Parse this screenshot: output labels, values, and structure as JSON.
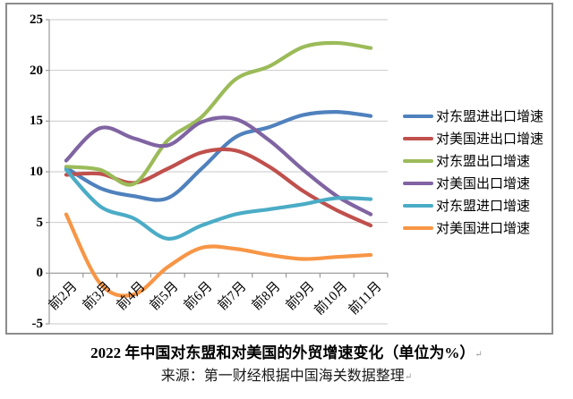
{
  "chart_data": {
    "type": "line",
    "title": "2022 年中国对东盟和对美国的外贸增速变化（单位为%）",
    "source": "来源：第一财经根据中国海关数据整理",
    "unit": "%",
    "categories": [
      "前2月",
      "前3月",
      "前4月",
      "前5月",
      "前6月",
      "前7月",
      "前8月",
      "前9月",
      "前10月",
      "前11月"
    ],
    "series": [
      {
        "name": "对东盟进出口增速",
        "color": "#4F81BD",
        "values": [
          10.4,
          8.4,
          7.6,
          7.4,
          10.3,
          13.4,
          14.4,
          15.6,
          15.9,
          15.5
        ]
      },
      {
        "name": "对美国进出口增速",
        "color": "#C0504D",
        "values": [
          9.7,
          9.8,
          8.9,
          10.3,
          11.9,
          12.1,
          10.5,
          8.1,
          6.2,
          4.7
        ]
      },
      {
        "name": "对东盟出口增速",
        "color": "#9BBB59",
        "values": [
          10.5,
          10.2,
          8.8,
          13.1,
          15.4,
          19.1,
          20.4,
          22.3,
          22.7,
          22.2
        ]
      },
      {
        "name": "对美国出口增速",
        "color": "#8064A2",
        "values": [
          11.1,
          14.3,
          13.3,
          12.6,
          14.9,
          15.2,
          13.1,
          10.2,
          7.6,
          5.8
        ]
      },
      {
        "name": "对东盟进口增速",
        "color": "#4BACC6",
        "values": [
          10.2,
          6.6,
          5.4,
          3.4,
          4.7,
          5.8,
          6.3,
          6.8,
          7.4,
          7.3
        ]
      },
      {
        "name": "对美国进口增速",
        "color": "#F79646",
        "values": [
          5.8,
          -1.0,
          -2.1,
          0.6,
          2.5,
          2.4,
          1.8,
          1.4,
          1.6,
          1.8
        ]
      }
    ],
    "ylim": [
      -5,
      25
    ],
    "yticks": [
      25,
      20,
      15,
      10,
      5,
      0,
      -5
    ],
    "grid": true,
    "smooth": true,
    "legend_position": "right",
    "colors": {
      "gridline": "#c9c9c9",
      "axis": "#9a9a9a",
      "frame": "#8c8c8c"
    }
  },
  "marks": {
    "paragraph_mark": "↵"
  }
}
